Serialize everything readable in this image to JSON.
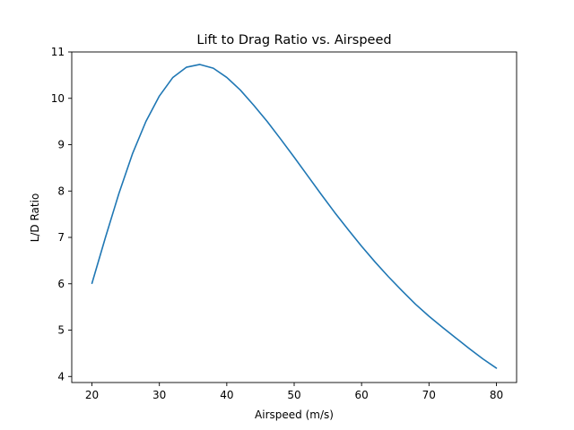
{
  "chart_data": {
    "type": "line",
    "title": "Lift to Drag Ratio vs. Airspeed",
    "xlabel": "Airspeed (m/s)",
    "ylabel": "L/D Ratio",
    "xlim": [
      17,
      83
    ],
    "ylim": [
      3.87,
      11.0
    ],
    "xticks": [
      20,
      30,
      40,
      50,
      60,
      70,
      80
    ],
    "yticks": [
      4,
      5,
      6,
      7,
      8,
      9,
      10,
      11
    ],
    "grid": false,
    "line_color": "#1f77b4",
    "series": [
      {
        "x": [
          20,
          22,
          24,
          26,
          28,
          30,
          32,
          34,
          36,
          38,
          40,
          42,
          44,
          46,
          48,
          50,
          52,
          54,
          56,
          58,
          60,
          62,
          64,
          66,
          68,
          70,
          72,
          74,
          76,
          78,
          80
        ],
        "values": [
          6.01,
          7.0,
          7.95,
          8.8,
          9.5,
          10.05,
          10.45,
          10.67,
          10.73,
          10.65,
          10.45,
          10.18,
          9.85,
          9.5,
          9.12,
          8.73,
          8.33,
          7.93,
          7.54,
          7.17,
          6.81,
          6.47,
          6.15,
          5.85,
          5.56,
          5.3,
          5.06,
          4.83,
          4.6,
          4.38,
          4.18
        ]
      }
    ]
  }
}
